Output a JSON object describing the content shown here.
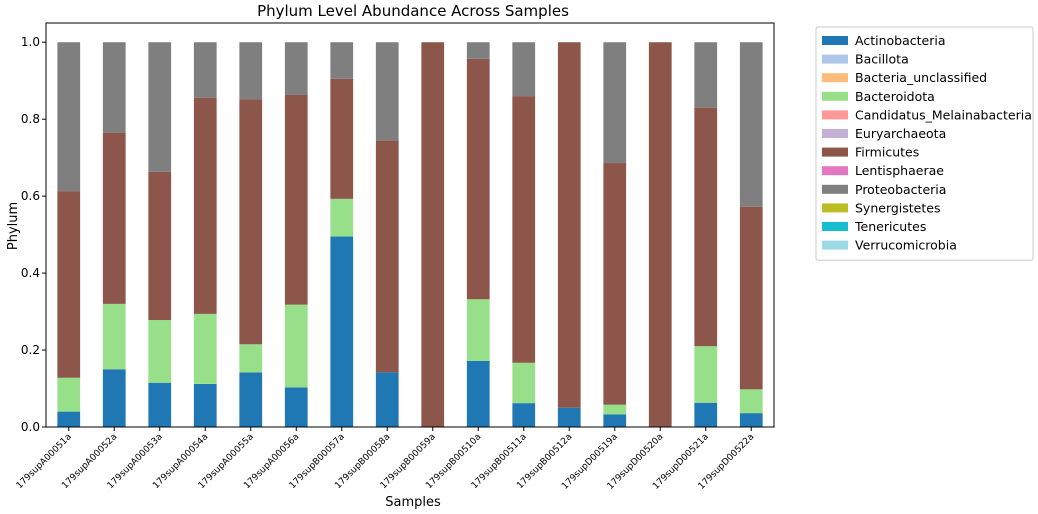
{
  "chart_data": {
    "type": "bar",
    "stacked": true,
    "title": "Phylum Level Abundance Across Samples",
    "xlabel": "Samples",
    "ylabel": "Phylum",
    "ylim": [
      0,
      1.05
    ],
    "yticks": [
      "0.0",
      "0.2",
      "0.4",
      "0.6",
      "0.8",
      "1.0"
    ],
    "grid": false,
    "legend_position": "outside-right",
    "categories": [
      "179supA00051a",
      "179supA00052a",
      "179supA00053a",
      "179supA00054a",
      "179supA00055a",
      "179supA00056a",
      "179supB00057a",
      "179supB00058a",
      "179supB00059a",
      "179supB00510a",
      "179supB00511a",
      "179supB00512a",
      "179supD00519a",
      "179supD00520a",
      "179supD00521a",
      "179supD00522a"
    ],
    "series": [
      {
        "name": "Actinobacteria",
        "color": "#1f77b4",
        "values": [
          0.04,
          0.15,
          0.115,
          0.112,
          0.142,
          0.103,
          0.495,
          0.142,
          0.0,
          0.172,
          0.062,
          0.05,
          0.033,
          0.0,
          0.063,
          0.036
        ]
      },
      {
        "name": "Bacillota",
        "color": "#aec7e8",
        "values": [
          0,
          0,
          0,
          0,
          0,
          0,
          0,
          0,
          0,
          0,
          0,
          0,
          0,
          0,
          0,
          0
        ]
      },
      {
        "name": "Bacteria_unclassified",
        "color": "#ffbb78",
        "values": [
          0,
          0,
          0,
          0,
          0,
          0,
          0,
          0,
          0,
          0,
          0,
          0,
          0,
          0,
          0,
          0
        ]
      },
      {
        "name": "Bacteroidota",
        "color": "#98df8a",
        "values": [
          0.088,
          0.17,
          0.163,
          0.182,
          0.073,
          0.215,
          0.098,
          0.0,
          0.0,
          0.16,
          0.105,
          0.0,
          0.025,
          0.0,
          0.147,
          0.062
        ]
      },
      {
        "name": "Candidatus_Melainabacteria",
        "color": "#ff9896",
        "values": [
          0,
          0,
          0,
          0,
          0,
          0,
          0,
          0,
          0,
          0,
          0,
          0,
          0,
          0,
          0,
          0
        ]
      },
      {
        "name": "Euryarchaeota",
        "color": "#c5b0d5",
        "values": [
          0,
          0,
          0,
          0,
          0,
          0,
          0,
          0,
          0,
          0,
          0,
          0,
          0,
          0,
          0,
          0
        ]
      },
      {
        "name": "Firmicutes",
        "color": "#8c564b",
        "values": [
          0.485,
          0.445,
          0.385,
          0.562,
          0.637,
          0.545,
          0.312,
          0.603,
          1.0,
          0.625,
          0.693,
          0.95,
          0.628,
          1.0,
          0.62,
          0.474
        ]
      },
      {
        "name": "Lentisphaerae",
        "color": "#e377c2",
        "values": [
          0,
          0,
          0,
          0,
          0,
          0,
          0,
          0,
          0,
          0,
          0,
          0,
          0,
          0,
          0,
          0
        ]
      },
      {
        "name": "Proteobacteria",
        "color": "#7f7f7f",
        "values": [
          0.387,
          0.235,
          0.337,
          0.144,
          0.148,
          0.137,
          0.095,
          0.255,
          0.0,
          0.043,
          0.14,
          0.0,
          0.314,
          0.0,
          0.17,
          0.428
        ]
      },
      {
        "name": "Synergistetes",
        "color": "#bcbd22",
        "values": [
          0,
          0,
          0,
          0,
          0,
          0,
          0,
          0,
          0,
          0,
          0,
          0,
          0,
          0,
          0,
          0
        ]
      },
      {
        "name": "Tenericutes",
        "color": "#17becf",
        "values": [
          0,
          0,
          0,
          0,
          0,
          0,
          0,
          0,
          0,
          0,
          0,
          0,
          0,
          0,
          0,
          0
        ]
      },
      {
        "name": "Verrucomicrobia",
        "color": "#9edae5",
        "values": [
          0,
          0,
          0,
          0,
          0,
          0,
          0,
          0,
          0,
          0,
          0,
          0,
          0,
          0,
          0,
          0
        ]
      }
    ]
  }
}
